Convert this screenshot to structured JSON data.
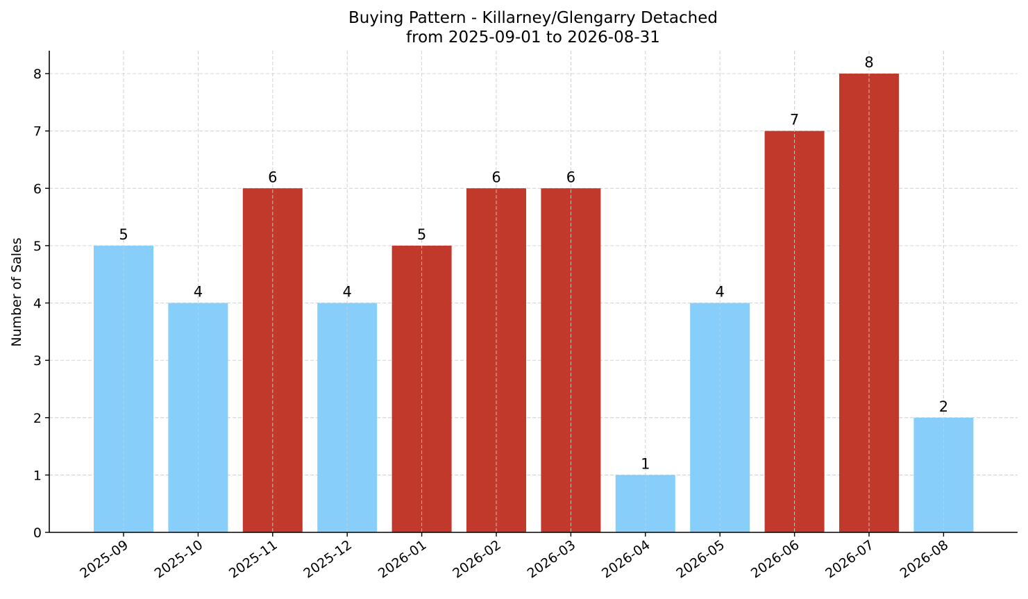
{
  "chart_data": {
    "type": "bar",
    "title": "Buying Pattern - Killarney/Glengarry Detached",
    "subtitle": "from 2025-09-01 to 2026-08-31",
    "xlabel": "",
    "ylabel": "Number of Sales",
    "categories": [
      "2025-09",
      "2025-10",
      "2025-11",
      "2025-12",
      "2026-01",
      "2026-02",
      "2026-03",
      "2026-04",
      "2026-05",
      "2026-06",
      "2026-07",
      "2026-08"
    ],
    "values": [
      5,
      4,
      6,
      4,
      5,
      6,
      6,
      1,
      4,
      7,
      8,
      2
    ],
    "ylim": [
      0,
      8.4
    ],
    "yticks": [
      0,
      1,
      2,
      3,
      4,
      5,
      6,
      7,
      8
    ],
    "grid": true,
    "colors": {
      "high": "#c0392b",
      "low": "#87cefa"
    },
    "bar_colors": [
      "low",
      "low",
      "high",
      "low",
      "high",
      "high",
      "high",
      "low",
      "low",
      "high",
      "high",
      "low"
    ],
    "data_labels": true
  }
}
